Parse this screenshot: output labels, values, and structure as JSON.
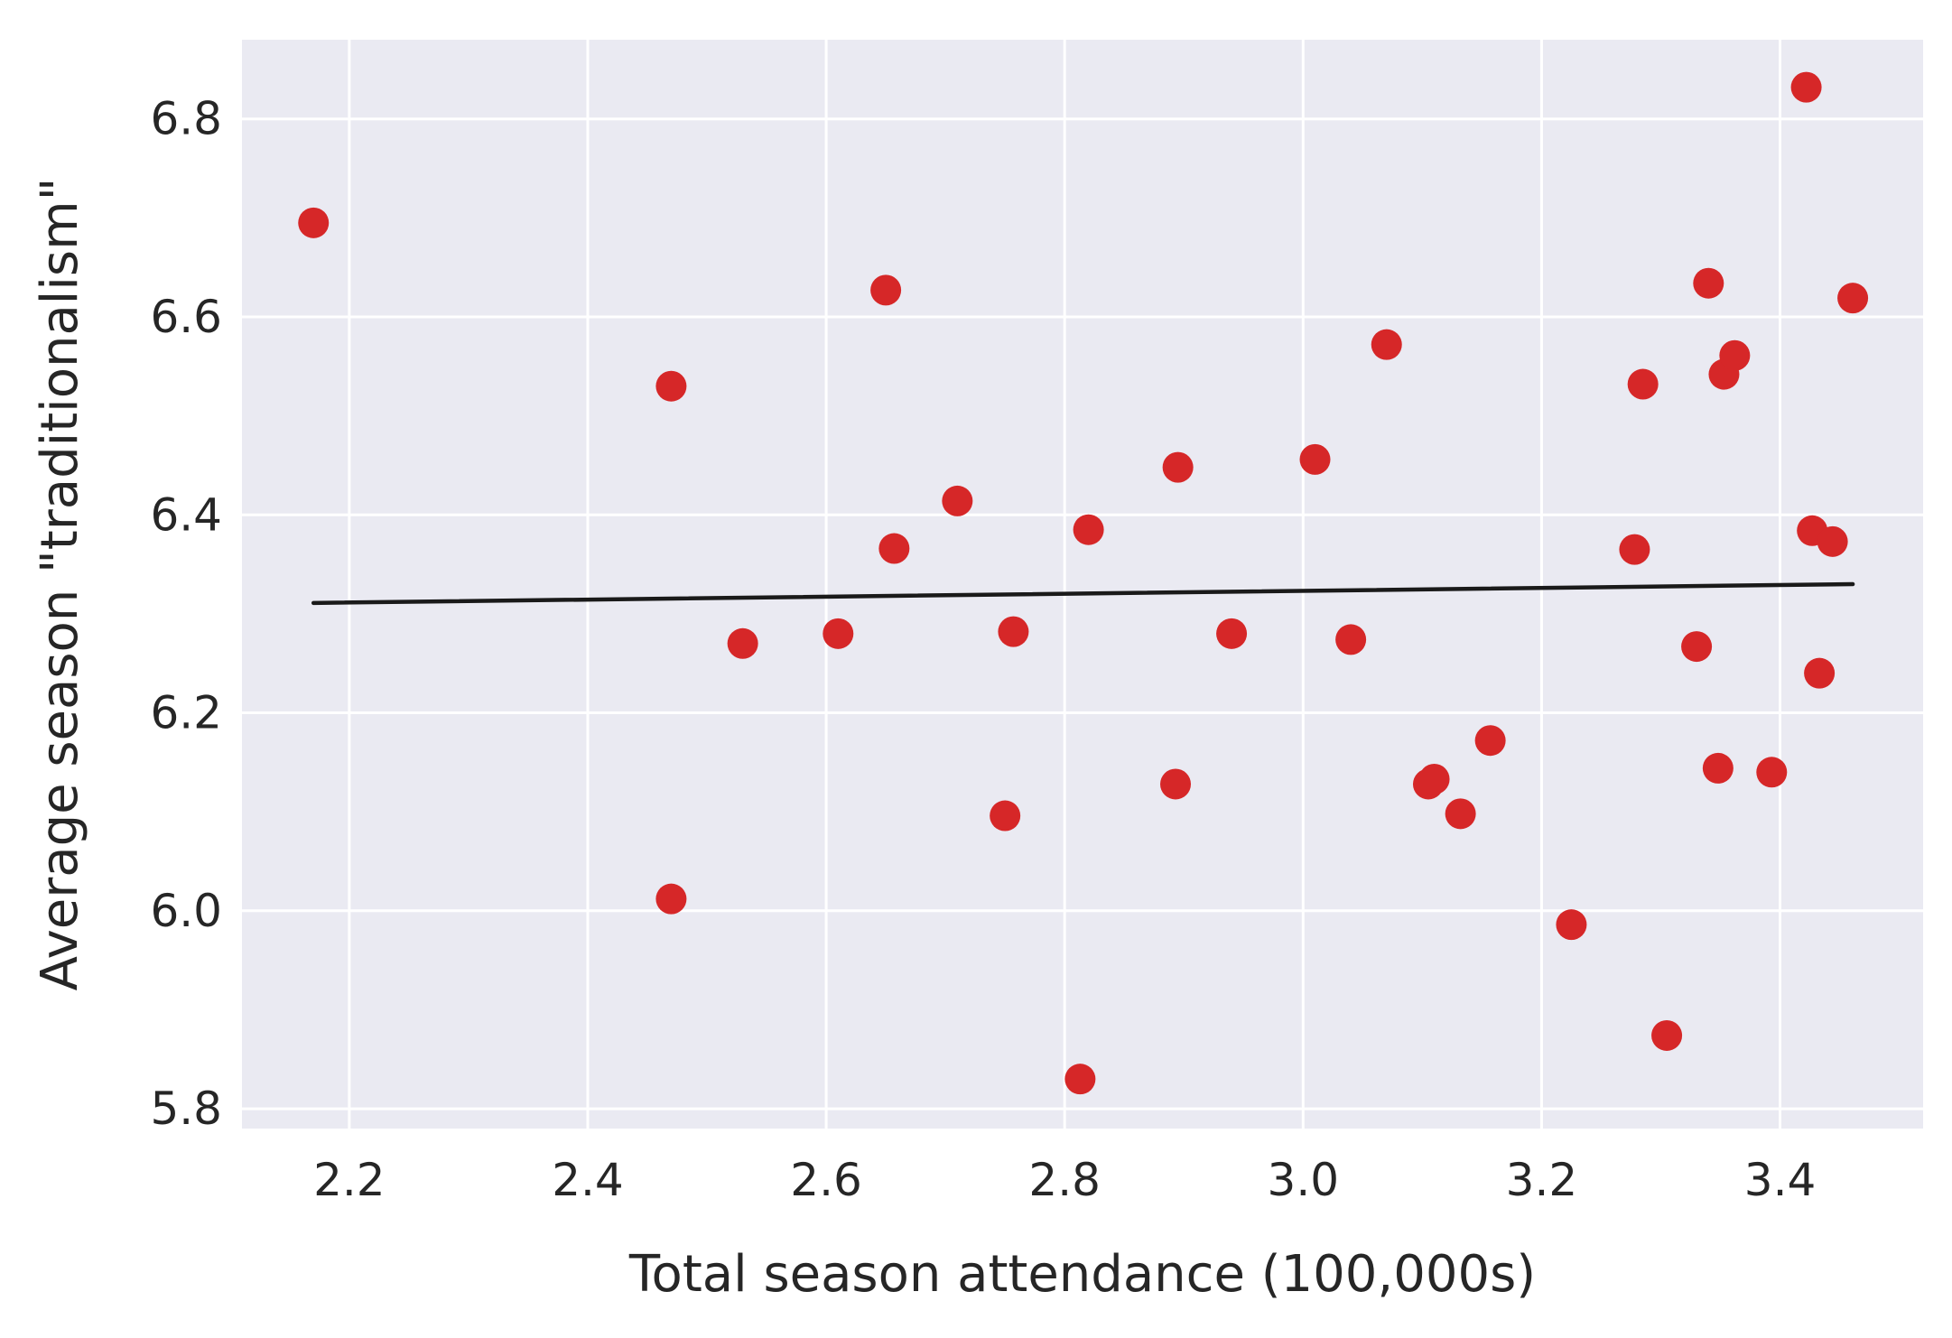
{
  "chart_data": {
    "type": "scatter",
    "title": "",
    "xlabel": "Total season attendance (100,000s)",
    "ylabel": "Average season \"traditionalism\"",
    "xlim": [
      2.11,
      3.52
    ],
    "ylim": [
      5.78,
      6.88
    ],
    "xticks": [
      2.2,
      2.4,
      2.6,
      2.8,
      3.0,
      3.2,
      3.4
    ],
    "xtick_labels": [
      "2.2",
      "2.4",
      "2.6",
      "2.8",
      "3.0",
      "3.2",
      "3.4"
    ],
    "yticks": [
      5.8,
      6.0,
      6.2,
      6.4,
      6.6,
      6.8
    ],
    "ytick_labels": [
      "5.8",
      "6.0",
      "6.2",
      "6.4",
      "6.6",
      "6.8"
    ],
    "grid": true,
    "background": "#eaeaf2",
    "grid_color": "#ffffff",
    "point_color": "#d62728",
    "line_color": "#1a1a1a",
    "series": [
      {
        "type": "scatter",
        "points": [
          {
            "x": 2.17,
            "y": 6.695
          },
          {
            "x": 2.47,
            "y": 6.53
          },
          {
            "x": 2.47,
            "y": 6.012
          },
          {
            "x": 2.53,
            "y": 6.27
          },
          {
            "x": 2.61,
            "y": 6.28
          },
          {
            "x": 2.65,
            "y": 6.627
          },
          {
            "x": 2.657,
            "y": 6.366
          },
          {
            "x": 2.71,
            "y": 6.414
          },
          {
            "x": 2.75,
            "y": 6.096
          },
          {
            "x": 2.757,
            "y": 6.282
          },
          {
            "x": 2.813,
            "y": 5.83
          },
          {
            "x": 2.82,
            "y": 6.385
          },
          {
            "x": 2.893,
            "y": 6.128
          },
          {
            "x": 2.895,
            "y": 6.448
          },
          {
            "x": 2.94,
            "y": 6.28
          },
          {
            "x": 3.01,
            "y": 6.456
          },
          {
            "x": 3.04,
            "y": 6.274
          },
          {
            "x": 3.07,
            "y": 6.572
          },
          {
            "x": 3.105,
            "y": 6.128
          },
          {
            "x": 3.11,
            "y": 6.133
          },
          {
            "x": 3.132,
            "y": 6.098
          },
          {
            "x": 3.157,
            "y": 6.172
          },
          {
            "x": 3.225,
            "y": 5.986
          },
          {
            "x": 3.278,
            "y": 6.365
          },
          {
            "x": 3.285,
            "y": 6.532
          },
          {
            "x": 3.305,
            "y": 5.874
          },
          {
            "x": 3.33,
            "y": 6.267
          },
          {
            "x": 3.34,
            "y": 6.634
          },
          {
            "x": 3.348,
            "y": 6.144
          },
          {
            "x": 3.353,
            "y": 6.542
          },
          {
            "x": 3.362,
            "y": 6.561
          },
          {
            "x": 3.393,
            "y": 6.14
          },
          {
            "x": 3.422,
            "y": 6.832
          },
          {
            "x": 3.427,
            "y": 6.384
          },
          {
            "x": 3.433,
            "y": 6.24
          },
          {
            "x": 3.444,
            "y": 6.373
          },
          {
            "x": 3.461,
            "y": 6.619
          }
        ]
      },
      {
        "type": "line",
        "points": [
          {
            "x": 2.17,
            "y": 6.311
          },
          {
            "x": 3.461,
            "y": 6.33
          }
        ]
      }
    ]
  }
}
